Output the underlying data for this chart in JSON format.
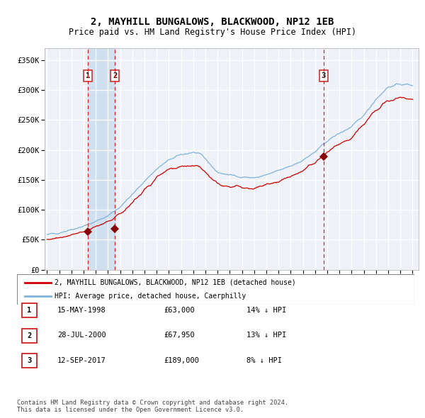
{
  "title": "2, MAYHILL BUNGALOWS, BLACKWOOD, NP12 1EB",
  "subtitle": "Price paid vs. HM Land Registry's House Price Index (HPI)",
  "title_fontsize": 10,
  "subtitle_fontsize": 8.5,
  "xlim": [
    1994.8,
    2025.5
  ],
  "ylim": [
    0,
    370000
  ],
  "yticks": [
    0,
    50000,
    100000,
    150000,
    200000,
    250000,
    300000,
    350000
  ],
  "ytick_labels": [
    "£0",
    "£50K",
    "£100K",
    "£150K",
    "£200K",
    "£250K",
    "£300K",
    "£350K"
  ],
  "bg_color": "#eef2f8",
  "plot_bg_color": "#eef2f8",
  "grid_color": "#ffffff",
  "sale_color": "#cc0000",
  "hpi_color": "#7fb3d9",
  "sale_marker_color": "#880000",
  "dashed_line_color": "#dd2222",
  "shade_color": "#ccddf0",
  "legend_label_sale": "2, MAYHILL BUNGALOWS, BLACKWOOD, NP12 1EB (detached house)",
  "legend_label_hpi": "HPI: Average price, detached house, Caerphilly",
  "transactions": [
    {
      "date_year": 1998.37,
      "price": 63000,
      "label": "1"
    },
    {
      "date_year": 2000.57,
      "price": 67950,
      "label": "2"
    },
    {
      "date_year": 2017.7,
      "price": 189000,
      "label": "3"
    }
  ],
  "transaction_table": [
    {
      "num": "1",
      "date": "15-MAY-1998",
      "price": "£63,000",
      "hpi": "14% ↓ HPI"
    },
    {
      "num": "2",
      "date": "28-JUL-2000",
      "price": "£67,950",
      "hpi": "13% ↓ HPI"
    },
    {
      "num": "3",
      "date": "12-SEP-2017",
      "price": "£189,000",
      "hpi": "8% ↓ HPI"
    }
  ],
  "footer": "Contains HM Land Registry data © Crown copyright and database right 2024.\nThis data is licensed under the Open Government Licence v3.0."
}
